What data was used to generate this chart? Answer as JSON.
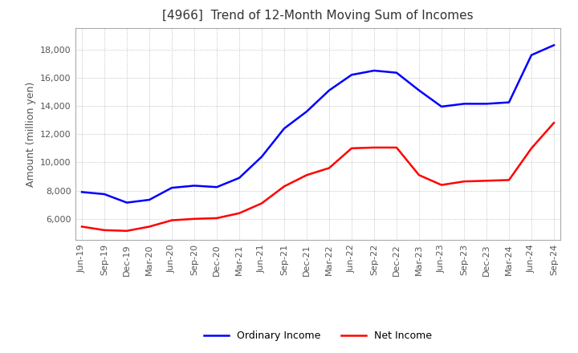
{
  "title": "[4966]  Trend of 12-Month Moving Sum of Incomes",
  "ylabel": "Amount (million yen)",
  "title_fontsize": 11,
  "label_fontsize": 9,
  "tick_fontsize": 8,
  "x_labels": [
    "Jun-19",
    "Sep-19",
    "Dec-19",
    "Mar-20",
    "Jun-20",
    "Sep-20",
    "Dec-20",
    "Mar-21",
    "Jun-21",
    "Sep-21",
    "Dec-21",
    "Mar-22",
    "Jun-22",
    "Sep-22",
    "Dec-22",
    "Mar-23",
    "Jun-23",
    "Sep-23",
    "Dec-23",
    "Mar-24",
    "Jun-24",
    "Sep-24"
  ],
  "ordinary_income": [
    7900,
    7750,
    7150,
    7350,
    8200,
    8350,
    8250,
    8900,
    10400,
    12400,
    13600,
    15100,
    16200,
    16500,
    16350,
    15100,
    13950,
    14150,
    14150,
    14250,
    17600,
    18300
  ],
  "net_income": [
    5450,
    5200,
    5150,
    5450,
    5900,
    6000,
    6050,
    6400,
    7100,
    8300,
    9100,
    9600,
    11000,
    11050,
    11050,
    9100,
    8400,
    8650,
    8700,
    8750,
    11000,
    12800
  ],
  "ordinary_color": "#0000ff",
  "net_color": "#ff0000",
  "ylim": [
    4500,
    19500
  ],
  "yticks": [
    6000,
    8000,
    10000,
    12000,
    14000,
    16000,
    18000
  ],
  "grid_color": "#aaaaaa",
  "bg_color": "#ffffff",
  "line_width": 1.8,
  "legend_fontsize": 9
}
